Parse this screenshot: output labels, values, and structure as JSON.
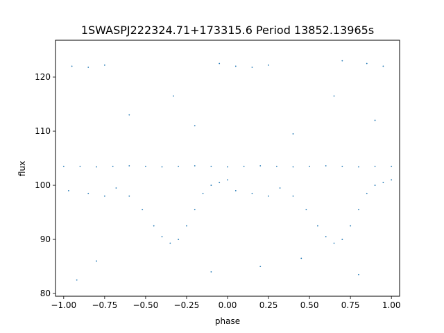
{
  "chart_data": {
    "type": "scatter",
    "title": "1SWASPJ222324.71+173315.6 Period 13852.13965s",
    "xlabel": "phase",
    "ylabel": "flux",
    "xlim": [
      -1.05,
      1.05
    ],
    "ylim": [
      79.5,
      126.8
    ],
    "x_ticks": [
      -1.0,
      -0.75,
      -0.5,
      -0.25,
      0.0,
      0.25,
      0.5,
      0.75,
      1.0
    ],
    "x_tick_labels": [
      "−1.00",
      "−0.75",
      "−0.50",
      "−0.25",
      "0.00",
      "0.25",
      "0.50",
      "0.75",
      "1.00"
    ],
    "y_ticks": [
      80,
      90,
      100,
      110,
      120
    ],
    "y_tick_labels": [
      "80",
      "90",
      "100",
      "110",
      "120"
    ],
    "grid": false,
    "legend": "none",
    "point_color": "#1f77b4",
    "series": [
      {
        "values": [
          {
            "x": -1.0,
            "y": 103.5
          },
          {
            "x": -0.9,
            "y": 103.5
          },
          {
            "x": -0.8,
            "y": 103.4
          },
          {
            "x": -0.7,
            "y": 103.5
          },
          {
            "x": -0.6,
            "y": 103.6
          },
          {
            "x": -0.5,
            "y": 103.5
          },
          {
            "x": -0.4,
            "y": 103.4
          },
          {
            "x": -0.3,
            "y": 103.5
          },
          {
            "x": -0.2,
            "y": 103.6
          },
          {
            "x": -0.1,
            "y": 103.5
          },
          {
            "x": 0.0,
            "y": 103.4
          },
          {
            "x": 0.1,
            "y": 103.5
          },
          {
            "x": 0.2,
            "y": 103.6
          },
          {
            "x": 0.3,
            "y": 103.5
          },
          {
            "x": 0.4,
            "y": 103.4
          },
          {
            "x": 0.5,
            "y": 103.5
          },
          {
            "x": 0.6,
            "y": 103.6
          },
          {
            "x": 0.7,
            "y": 103.5
          },
          {
            "x": 0.8,
            "y": 103.4
          },
          {
            "x": 0.9,
            "y": 103.5
          },
          {
            "x": 1.0,
            "y": 103.5
          },
          {
            "x": -0.97,
            "y": 99.0
          },
          {
            "x": -0.85,
            "y": 98.5
          },
          {
            "x": -0.75,
            "y": 98.0
          },
          {
            "x": -0.68,
            "y": 99.5
          },
          {
            "x": -0.6,
            "y": 98.0
          },
          {
            "x": -0.52,
            "y": 95.5
          },
          {
            "x": -0.45,
            "y": 92.5
          },
          {
            "x": -0.4,
            "y": 90.5
          },
          {
            "x": -0.35,
            "y": 89.3
          },
          {
            "x": -0.3,
            "y": 90.0
          },
          {
            "x": -0.25,
            "y": 92.5
          },
          {
            "x": -0.2,
            "y": 95.5
          },
          {
            "x": -0.15,
            "y": 98.5
          },
          {
            "x": -0.1,
            "y": 100.0
          },
          {
            "x": -0.05,
            "y": 100.5
          },
          {
            "x": 0.0,
            "y": 101.0
          },
          {
            "x": 0.05,
            "y": 99.0
          },
          {
            "x": 0.15,
            "y": 98.5
          },
          {
            "x": 0.25,
            "y": 98.0
          },
          {
            "x": 0.32,
            "y": 99.5
          },
          {
            "x": 0.4,
            "y": 98.0
          },
          {
            "x": 0.48,
            "y": 95.5
          },
          {
            "x": 0.55,
            "y": 92.5
          },
          {
            "x": 0.6,
            "y": 90.5
          },
          {
            "x": 0.65,
            "y": 89.3
          },
          {
            "x": 0.7,
            "y": 90.0
          },
          {
            "x": 0.75,
            "y": 92.5
          },
          {
            "x": 0.8,
            "y": 95.5
          },
          {
            "x": 0.85,
            "y": 98.5
          },
          {
            "x": 0.9,
            "y": 100.0
          },
          {
            "x": 0.95,
            "y": 100.5
          },
          {
            "x": 1.0,
            "y": 101.0
          },
          {
            "x": -0.95,
            "y": 122.0
          },
          {
            "x": -0.85,
            "y": 121.8
          },
          {
            "x": -0.75,
            "y": 122.2
          },
          {
            "x": -0.05,
            "y": 122.5
          },
          {
            "x": 0.05,
            "y": 122.0
          },
          {
            "x": 0.15,
            "y": 121.8
          },
          {
            "x": 0.25,
            "y": 122.2
          },
          {
            "x": 0.7,
            "y": 123.0
          },
          {
            "x": 0.85,
            "y": 122.5
          },
          {
            "x": 0.95,
            "y": 122.0
          },
          {
            "x": -0.6,
            "y": 113.0
          },
          {
            "x": -0.33,
            "y": 116.5
          },
          {
            "x": 0.65,
            "y": 116.5
          },
          {
            "x": -0.2,
            "y": 111.0
          },
          {
            "x": 0.4,
            "y": 109.5
          },
          {
            "x": 0.9,
            "y": 112.0
          },
          {
            "x": -0.8,
            "y": 86.0
          },
          {
            "x": 0.2,
            "y": 85.0
          },
          {
            "x": -0.1,
            "y": 84.0
          },
          {
            "x": 0.8,
            "y": 83.5
          },
          {
            "x": -0.92,
            "y": 82.5
          },
          {
            "x": 0.45,
            "y": 86.5
          }
        ]
      }
    ]
  }
}
